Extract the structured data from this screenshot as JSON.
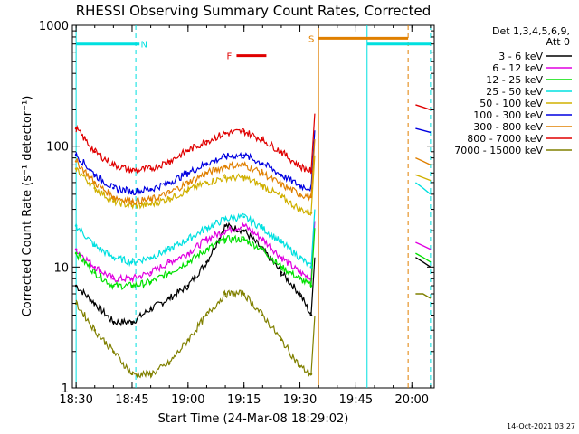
{
  "chart_data": {
    "type": "line",
    "title": "RHESSI Observing Summary Count Rates, Corrected",
    "xlabel": "Start Time (24-Mar-08 18:29:02)",
    "ylabel": "Corrected Count Rate (s⁻¹ detector⁻¹)",
    "ylog": true,
    "ylim": [
      1,
      1000
    ],
    "xlim": [
      "18:29",
      "20:06"
    ],
    "x_ticks": [
      "18:30",
      "18:45",
      "19:00",
      "19:15",
      "19:30",
      "19:45",
      "20:00"
    ],
    "y_ticks": [
      "1",
      "10",
      "100",
      "1000"
    ],
    "legend_header": [
      "Det 1,3,4,5,6,9,",
      "Att 0"
    ],
    "legend_placement": "right",
    "timestamp": "14-Oct-2021 03:27",
    "x": [
      "18:30",
      "18:35",
      "18:40",
      "18:45",
      "18:50",
      "18:55",
      "19:00",
      "19:05",
      "19:10",
      "19:15",
      "19:20",
      "19:25",
      "19:30",
      "19:33"
    ],
    "series": [
      {
        "name": "3 - 6 keV",
        "color": "#000000",
        "values": [
          7,
          5,
          3.5,
          3.5,
          4.5,
          5.5,
          7,
          11,
          22,
          20,
          14,
          9,
          6,
          4
        ],
        "late": [
          12,
          11,
          10
        ]
      },
      {
        "name": "6 - 12 keV",
        "color": "#e000e0",
        "values": [
          14,
          10,
          8,
          8,
          9,
          11,
          13,
          17,
          20,
          22,
          17,
          12,
          9,
          8
        ],
        "late": [
          16,
          15,
          14
        ]
      },
      {
        "name": "12 - 25 keV",
        "color": "#00e000",
        "values": [
          13,
          9,
          7,
          7,
          7.5,
          9,
          11,
          14,
          17,
          17,
          14,
          10,
          8,
          7
        ],
        "late": [
          13,
          12,
          11
        ]
      },
      {
        "name": "25 - 50 keV",
        "color": "#00e0e0",
        "values": [
          22,
          15,
          12,
          11,
          12,
          14,
          17,
          21,
          25,
          26,
          21,
          16,
          12,
          10
        ],
        "late": [
          50,
          45,
          40
        ]
      },
      {
        "name": "50 - 100 keV",
        "color": "#d0b000",
        "values": [
          65,
          45,
          35,
          32,
          33,
          37,
          43,
          50,
          55,
          55,
          47,
          38,
          30,
          28
        ],
        "late": [
          58,
          55,
          52
        ]
      },
      {
        "name": "100 - 300 keV",
        "color": "#0000e0",
        "values": [
          85,
          58,
          45,
          42,
          44,
          50,
          60,
          72,
          82,
          84,
          72,
          58,
          47,
          45
        ],
        "late": [
          140,
          135,
          130
        ]
      },
      {
        "name": "300 - 800 keV",
        "color": "#e08000",
        "values": [
          75,
          50,
          38,
          35,
          36,
          41,
          50,
          60,
          68,
          70,
          60,
          48,
          40,
          38
        ],
        "late": [
          80,
          75,
          70
        ]
      },
      {
        "name": "800 - 7000 keV",
        "color": "#e00000",
        "values": [
          140,
          90,
          70,
          63,
          65,
          75,
          92,
          110,
          128,
          133,
          113,
          90,
          68,
          62
        ],
        "late": [
          220,
          210,
          200
        ]
      },
      {
        "name": "7000 - 15000 keV",
        "color": "#808000",
        "values": [
          5,
          3,
          2,
          1.3,
          1.3,
          1.6,
          2.5,
          4,
          6,
          6,
          4,
          2.5,
          1.5,
          1.3
        ],
        "late": [
          6,
          6,
          5.5
        ]
      }
    ],
    "late_x": [
      "20:01",
      "20:03",
      "20:05"
    ],
    "annotations": [
      {
        "label": "N",
        "color": "#00e0e0",
        "start": "18:30",
        "end": "18:47",
        "level": 700
      },
      {
        "label": "F",
        "color": "#e00000",
        "start": "19:13",
        "end": "19:21",
        "level": 560
      },
      {
        "label": "S",
        "color": "#e08000",
        "start": "19:35",
        "end": "19:59",
        "level": 780
      },
      {
        "label": "",
        "color": "#00e0e0",
        "start": "19:48",
        "end": "20:05",
        "level": 700
      }
    ],
    "vlines": [
      {
        "t": "18:30",
        "color": "#00e0e0",
        "dash": false
      },
      {
        "t": "18:46",
        "color": "#00e0e0",
        "dash": true
      },
      {
        "t": "19:35",
        "color": "#e08000",
        "dash": false
      },
      {
        "t": "19:48",
        "color": "#00e0e0",
        "dash": false
      },
      {
        "t": "19:59",
        "color": "#e08000",
        "dash": true
      },
      {
        "t": "20:05",
        "color": "#00e0e0",
        "dash": true
      }
    ]
  }
}
